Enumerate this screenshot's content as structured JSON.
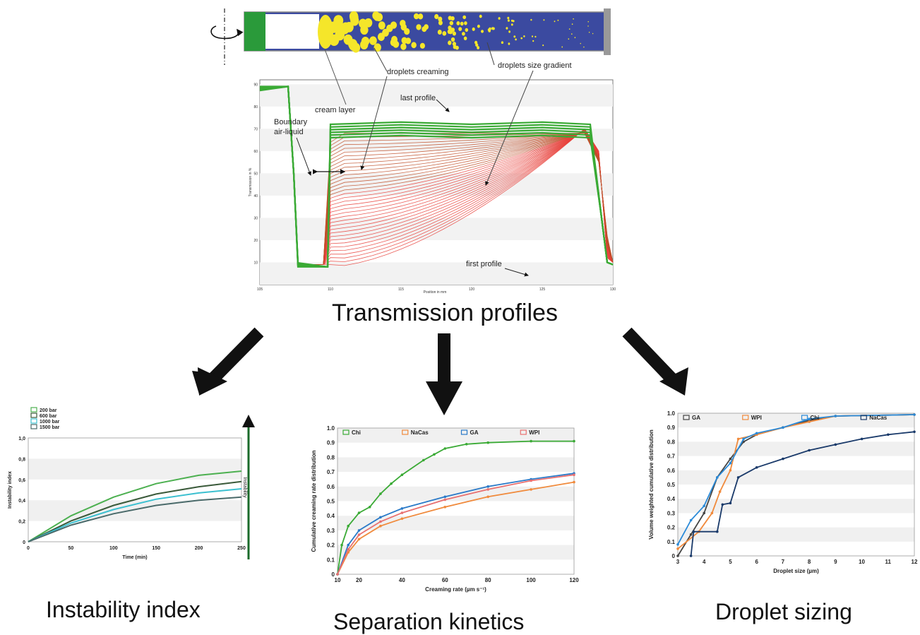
{
  "captions": {
    "transmission": "Transmission profiles",
    "instability": "Instability index",
    "separation": "Separation kinetics",
    "sizing": "Droplet sizing"
  },
  "tube_labels": {
    "creaming": "droplets creaming",
    "gradient": "droplets size gradient"
  },
  "profile_annotations": {
    "last": "last profile",
    "cream": "cream layer",
    "boundary_line1": "Boundary",
    "boundary_line2": "air-liquid",
    "first": "first profile"
  },
  "colors": {
    "tube_fill": "#3b4aa0",
    "droplet": "#f5e62a",
    "green": "#3aaa35",
    "red": "#e8403a",
    "arrow": "#111111"
  },
  "chart_data": [
    {
      "id": "transmission",
      "type": "line",
      "x_ticks": [
        "105",
        "110",
        "115",
        "120",
        "125",
        "130"
      ],
      "y_ticks": [
        "10",
        "20",
        "30",
        "40",
        "50",
        "60",
        "70",
        "80",
        "90"
      ],
      "xlabel": "Position in mm",
      "ylabel": "Transmission in %",
      "xlim": [
        105,
        130
      ],
      "ylim": [
        0,
        92
      ]
    },
    {
      "id": "instability",
      "type": "line",
      "xlabel": "Time (min)",
      "ylabel": "Instability index",
      "xlim": [
        0,
        250
      ],
      "ylim": [
        0,
        1.0
      ],
      "x_ticks": [
        "0",
        "50",
        "100",
        "150",
        "200",
        "250"
      ],
      "y_ticks": [
        "0",
        "0,2",
        "0,4",
        "0,6",
        "0,8",
        "1,0"
      ],
      "side_label": "Instability",
      "series": [
        {
          "name": "200 bar",
          "color": "#4cb050",
          "values": [
            [
              0,
              0
            ],
            [
              50,
              0.25
            ],
            [
              100,
              0.43
            ],
            [
              150,
              0.56
            ],
            [
              200,
              0.64
            ],
            [
              250,
              0.68
            ]
          ]
        },
        {
          "name": "600 bar",
          "color": "#3a5a3a",
          "values": [
            [
              0,
              0
            ],
            [
              50,
              0.2
            ],
            [
              100,
              0.35
            ],
            [
              150,
              0.46
            ],
            [
              200,
              0.53
            ],
            [
              250,
              0.58
            ]
          ]
        },
        {
          "name": "1000 bar",
          "color": "#3cc0d0",
          "values": [
            [
              0,
              0
            ],
            [
              50,
              0.18
            ],
            [
              100,
              0.31
            ],
            [
              150,
              0.41
            ],
            [
              200,
              0.47
            ],
            [
              250,
              0.51
            ]
          ]
        },
        {
          "name": "1500 bar",
          "color": "#4a6a6a",
          "values": [
            [
              0,
              0
            ],
            [
              50,
              0.16
            ],
            [
              100,
              0.27
            ],
            [
              150,
              0.35
            ],
            [
              200,
              0.4
            ],
            [
              250,
              0.43
            ]
          ]
        }
      ]
    },
    {
      "id": "separation",
      "type": "line",
      "xlabel": "Creaming rate (µm s⁻¹)",
      "ylabel": "Cumulative creaming rate distribution",
      "xlim": [
        10,
        120
      ],
      "ylim": [
        0,
        1.0
      ],
      "x_ticks": [
        "10",
        "20",
        "40",
        "60",
        "80",
        "100",
        "120"
      ],
      "y_ticks": [
        "0",
        "0.1",
        "0.2",
        "0.3",
        "0.4",
        "0.5",
        "0.6",
        "0.7",
        "0.8",
        "0.9",
        "1.0"
      ],
      "series": [
        {
          "name": "Chi",
          "color": "#3aaa35",
          "values": [
            [
              10,
              0
            ],
            [
              12,
              0.2
            ],
            [
              15,
              0.33
            ],
            [
              20,
              0.42
            ],
            [
              25,
              0.46
            ],
            [
              30,
              0.55
            ],
            [
              35,
              0.62
            ],
            [
              40,
              0.68
            ],
            [
              50,
              0.78
            ],
            [
              55,
              0.82
            ],
            [
              60,
              0.86
            ],
            [
              70,
              0.89
            ],
            [
              80,
              0.9
            ],
            [
              100,
              0.91
            ],
            [
              120,
              0.91
            ]
          ]
        },
        {
          "name": "NaCas",
          "color": "#f08a3c",
          "values": [
            [
              10,
              0
            ],
            [
              15,
              0.15
            ],
            [
              20,
              0.24
            ],
            [
              30,
              0.33
            ],
            [
              40,
              0.38
            ],
            [
              60,
              0.46
            ],
            [
              80,
              0.53
            ],
            [
              100,
              0.58
            ],
            [
              120,
              0.63
            ]
          ]
        },
        {
          "name": "GA",
          "color": "#2a7ac8",
          "values": [
            [
              10,
              0
            ],
            [
              15,
              0.2
            ],
            [
              20,
              0.3
            ],
            [
              30,
              0.39
            ],
            [
              40,
              0.45
            ],
            [
              60,
              0.53
            ],
            [
              80,
              0.6
            ],
            [
              100,
              0.65
            ],
            [
              120,
              0.69
            ]
          ]
        },
        {
          "name": "WPI",
          "color": "#e87070",
          "values": [
            [
              10,
              0
            ],
            [
              15,
              0.17
            ],
            [
              20,
              0.27
            ],
            [
              30,
              0.36
            ],
            [
              40,
              0.42
            ],
            [
              60,
              0.51
            ],
            [
              80,
              0.58
            ],
            [
              100,
              0.64
            ],
            [
              120,
              0.68
            ]
          ]
        }
      ]
    },
    {
      "id": "sizing",
      "type": "line",
      "xlabel": "Droplet size (µm)",
      "ylabel": "Volume weighted cumulative distribution",
      "xlim": [
        3,
        12
      ],
      "ylim": [
        0,
        1.0
      ],
      "x_ticks": [
        "3",
        "4",
        "5",
        "6",
        "7",
        "8",
        "9",
        "10",
        "11",
        "12"
      ],
      "y_ticks": [
        "0",
        "0.1",
        "0.2",
        "0.3",
        "0.4",
        "0.5",
        "0.6",
        "0.7",
        "0.8",
        "0.9",
        "1.0"
      ],
      "series": [
        {
          "name": "GA",
          "color": "#444444",
          "values": [
            [
              3,
              0
            ],
            [
              3.5,
              0.15
            ],
            [
              4,
              0.3
            ],
            [
              4.5,
              0.55
            ],
            [
              5,
              0.68
            ],
            [
              5.5,
              0.8
            ],
            [
              6,
              0.85
            ],
            [
              7,
              0.9
            ],
            [
              8,
              0.95
            ],
            [
              9,
              0.98
            ],
            [
              12,
              0.99
            ]
          ]
        },
        {
          "name": "WPI",
          "color": "#f08a3c",
          "values": [
            [
              3,
              0.05
            ],
            [
              3.8,
              0.17
            ],
            [
              4.3,
              0.3
            ],
            [
              4.6,
              0.45
            ],
            [
              5,
              0.6
            ],
            [
              5.3,
              0.82
            ],
            [
              6,
              0.85
            ],
            [
              7,
              0.9
            ],
            [
              8,
              0.94
            ],
            [
              9,
              0.98
            ],
            [
              12,
              0.99
            ]
          ]
        },
        {
          "name": "Chi",
          "color": "#2a8ad8",
          "values": [
            [
              3,
              0.08
            ],
            [
              3.5,
              0.25
            ],
            [
              4,
              0.35
            ],
            [
              4.5,
              0.55
            ],
            [
              5,
              0.65
            ],
            [
              5.5,
              0.82
            ],
            [
              6,
              0.86
            ],
            [
              7,
              0.9
            ],
            [
              8,
              0.96
            ],
            [
              9,
              0.98
            ],
            [
              12,
              0.99
            ]
          ]
        },
        {
          "name": "NaCas",
          "color": "#1a3a6a",
          "values": [
            [
              3.5,
              0
            ],
            [
              3.6,
              0.17
            ],
            [
              4.5,
              0.17
            ],
            [
              4.7,
              0.36
            ],
            [
              5,
              0.37
            ],
            [
              5.3,
              0.55
            ],
            [
              6,
              0.62
            ],
            [
              7,
              0.68
            ],
            [
              8,
              0.74
            ],
            [
              9,
              0.78
            ],
            [
              10,
              0.82
            ],
            [
              11,
              0.85
            ],
            [
              12,
              0.87
            ]
          ]
        }
      ]
    }
  ]
}
